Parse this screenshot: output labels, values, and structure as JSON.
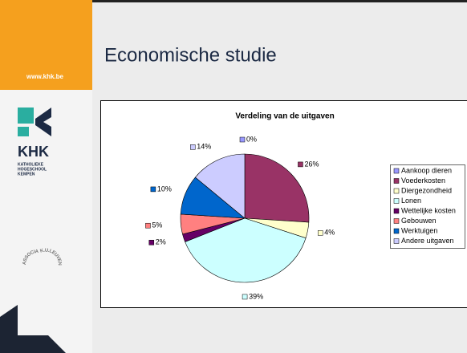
{
  "slide": {
    "website": "www.khk.be",
    "logo_name": "KHK",
    "logo_subtitle": [
      "KATHOLIEKE",
      "HOGESCHOOL",
      "KEMPEN"
    ],
    "association": [
      "ASSOCIATIE",
      "K.U.LEUVEN"
    ],
    "title": "Economische studie"
  },
  "chart_data": {
    "type": "pie",
    "title": "Verdeling van de uitgaven",
    "categories": [
      "Aankoop dieren",
      "Voederkosten",
      "Diergezondheid",
      "Lonen",
      "Wettelijke kosten",
      "Gebouwen",
      "Werktuigen",
      "Andere uitgaven"
    ],
    "values": [
      0,
      26,
      4,
      39,
      2,
      5,
      10,
      14
    ],
    "value_labels": [
      "0%",
      "26%",
      "4%",
      "39%",
      "2%",
      "5%",
      "10%",
      "14%"
    ],
    "colors": [
      "#9999ff",
      "#993366",
      "#ffffcc",
      "#ccffff",
      "#660066",
      "#ff8080",
      "#0066cc",
      "#ccccff"
    ],
    "legend": "right"
  }
}
